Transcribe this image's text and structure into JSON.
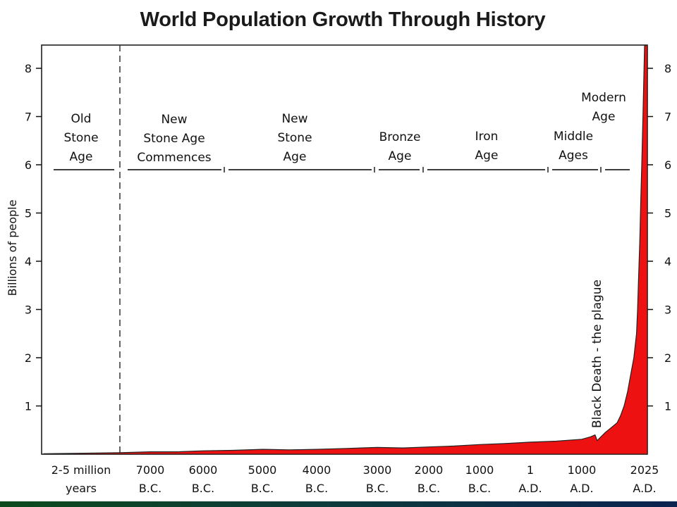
{
  "chart_data": {
    "type": "area",
    "title": "World Population Growth Through History",
    "ylabel": "Billions of people",
    "ylim": [
      0,
      8.5
    ],
    "yticks": [
      1,
      2,
      3,
      4,
      5,
      6,
      7,
      8
    ],
    "fill_color": "#ee1111",
    "x_tick_labels": [
      {
        "line1": "2-5 million",
        "line2": "years"
      },
      {
        "line1": "7000",
        "line2": "B.C."
      },
      {
        "line1": "6000",
        "line2": "B.C."
      },
      {
        "line1": "5000",
        "line2": "B.C."
      },
      {
        "line1": "4000",
        "line2": "B.C."
      },
      {
        "line1": "3000",
        "line2": "B.C."
      },
      {
        "line1": "2000",
        "line2": "B.C."
      },
      {
        "line1": "1000",
        "line2": "B.C."
      },
      {
        "line1": "1",
        "line2": "A.D."
      },
      {
        "line1": "1000",
        "line2": "A.D."
      },
      {
        "line1": "2025",
        "line2": "A.D."
      }
    ],
    "eras": [
      {
        "lines": [
          "Old",
          "Stone",
          "Age"
        ]
      },
      {
        "lines": [
          "New",
          "Stone Age",
          "Commences"
        ]
      },
      {
        "lines": [
          "New",
          "Stone",
          "Age"
        ]
      },
      {
        "lines": [
          "Bronze",
          "Age"
        ]
      },
      {
        "lines": [
          "Iron",
          "Age"
        ]
      },
      {
        "lines": [
          "Middle",
          "Ages"
        ]
      },
      {
        "lines": [
          "Modern",
          "Age"
        ]
      }
    ],
    "annotation": "Black Death - the plague",
    "series": [
      {
        "x": [
          -10000,
          -8000,
          -7000,
          -6500,
          -6000,
          -5500,
          -5000,
          -4500,
          -4000,
          -3500,
          -3000,
          -2500,
          -2000,
          -1500,
          -1000,
          -500,
          1,
          500,
          1000,
          1200,
          1300,
          1350,
          1400,
          1500,
          1600,
          1700,
          1750,
          1800,
          1850,
          1900,
          1925,
          1950,
          1960,
          1970,
          1980,
          1990,
          2000,
          2010,
          2025
        ],
        "y": [
          0.01,
          0.03,
          0.05,
          0.05,
          0.07,
          0.08,
          0.1,
          0.09,
          0.1,
          0.12,
          0.14,
          0.13,
          0.15,
          0.17,
          0.2,
          0.22,
          0.25,
          0.27,
          0.31,
          0.36,
          0.4,
          0.28,
          0.33,
          0.45,
          0.55,
          0.65,
          0.8,
          1.0,
          1.3,
          1.7,
          2.0,
          2.5,
          3.0,
          3.7,
          4.4,
          5.3,
          6.1,
          7.0,
          8.5
        ]
      }
    ]
  }
}
